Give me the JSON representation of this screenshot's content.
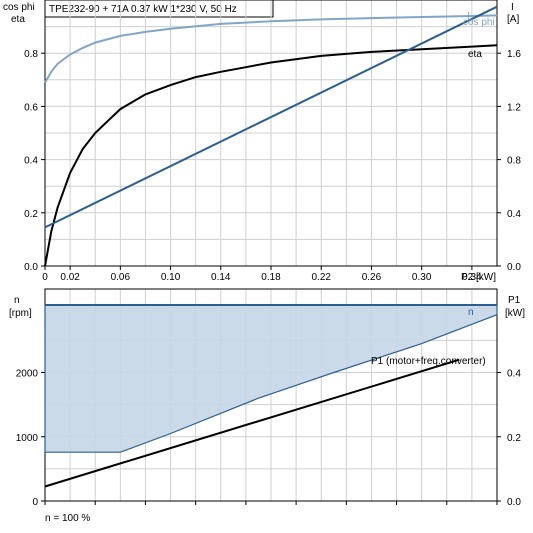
{
  "header": {
    "title": "TPE232-90 + 71A   0.37 kW   1*230 V, 50 Hz"
  },
  "colors": {
    "cos_phi": "#7fa6c8",
    "eta": "#000000",
    "current": "#2b5f8f",
    "speed_line": "#2b5f8f",
    "speed_fill": "#c5d6e6",
    "p1": "#000000",
    "grid": "#cfcfcf"
  },
  "footer": {
    "note": "n = 100 %"
  },
  "chart_data": [
    {
      "type": "line",
      "title": "",
      "y_left_label_lines": [
        "cos phi",
        "eta"
      ],
      "y_right_label_lines": [
        "I",
        "[A]"
      ],
      "xlabel": "P2 [kW]",
      "xlim": [
        0,
        0.36
      ],
      "ylim_left": [
        0,
        1.0
      ],
      "ylim_right": [
        0,
        2.0
      ],
      "x_ticks": [
        "0",
        "0.02",
        "0.06",
        "0.10",
        "0.14",
        "0.18",
        "0.22",
        "0.26",
        "0.30",
        "0.34"
      ],
      "x_tick_values": [
        0,
        0.02,
        0.06,
        0.1,
        0.14,
        0.18,
        0.22,
        0.26,
        0.3,
        0.34
      ],
      "y_left_ticks": [
        "0.0",
        "0.2",
        "0.4",
        "0.6",
        "0.8"
      ],
      "y_left_tick_values": [
        0,
        0.2,
        0.4,
        0.6,
        0.8
      ],
      "y_right_ticks": [
        "0.0",
        "0.4",
        "0.8",
        "1.2",
        "1.6"
      ],
      "y_right_tick_values": [
        0,
        0.4,
        0.8,
        1.2,
        1.6
      ],
      "grid": true,
      "series": [
        {
          "name": "cos phi",
          "axis": "left",
          "x": [
            0.0,
            0.005,
            0.01,
            0.02,
            0.03,
            0.04,
            0.06,
            0.08,
            0.1,
            0.14,
            0.18,
            0.22,
            0.26,
            0.3,
            0.34,
            0.36
          ],
          "y": [
            0.69,
            0.73,
            0.76,
            0.795,
            0.82,
            0.84,
            0.865,
            0.88,
            0.892,
            0.91,
            0.92,
            0.927,
            0.932,
            0.936,
            0.94,
            0.942
          ]
        },
        {
          "name": "eta",
          "axis": "left",
          "x": [
            0.0,
            0.005,
            0.01,
            0.02,
            0.03,
            0.04,
            0.06,
            0.08,
            0.1,
            0.12,
            0.14,
            0.18,
            0.22,
            0.26,
            0.3,
            0.34,
            0.36
          ],
          "y": [
            0.0,
            0.13,
            0.22,
            0.35,
            0.44,
            0.5,
            0.59,
            0.645,
            0.68,
            0.71,
            0.73,
            0.765,
            0.79,
            0.805,
            0.815,
            0.825,
            0.83
          ],
          "label": "eta"
        },
        {
          "name": "I",
          "axis": "right",
          "x": [
            0.0,
            0.36
          ],
          "y": [
            0.29,
            1.95
          ],
          "label": "I",
          "label2": "cos phi"
        }
      ]
    },
    {
      "type": "area",
      "title": "",
      "y_left_label_lines": [
        "n",
        "[rpm]"
      ],
      "y_right_label_lines": [
        "P1",
        "[kW]"
      ],
      "xlim": [
        0,
        0.36
      ],
      "ylim_left": [
        0,
        3300
      ],
      "ylim_right": [
        0,
        0.66
      ],
      "y_left_ticks": [
        "0",
        "1000",
        "2000"
      ],
      "y_left_tick_values": [
        0,
        1000,
        2000
      ],
      "y_right_ticks": [
        "0.0",
        "0.2",
        "0.4"
      ],
      "y_right_tick_values": [
        0,
        0.2,
        0.4
      ],
      "grid": true,
      "series": [
        {
          "name": "n",
          "axis": "left",
          "label": "n",
          "upper_x": [
            0.0,
            0.36
          ],
          "upper_y": [
            3300,
            3300
          ],
          "lower_x": [
            0.0,
            0.06,
            0.1,
            0.17,
            0.23,
            0.3,
            0.36
          ],
          "lower_y": [
            760,
            760,
            1050,
            1600,
            2000,
            2450,
            2900
          ]
        },
        {
          "name": "P1 (motor+freq.converter)",
          "axis": "right",
          "label": "P1 (motor+freq.converter)",
          "x": [
            0.0,
            0.33
          ],
          "y": [
            0.045,
            0.44
          ]
        }
      ]
    }
  ]
}
